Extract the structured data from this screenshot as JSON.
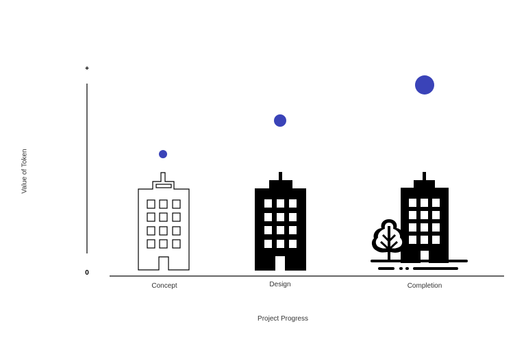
{
  "diagram": {
    "y_axis_label": "Value of Token",
    "y_tick_top": "+",
    "y_tick_bottom": "0",
    "x_axis_label": "Project Progress",
    "stages": [
      {
        "label": "Concept",
        "value_marker_size": "small",
        "building_style": "outline"
      },
      {
        "label": "Design",
        "value_marker_size": "medium",
        "building_style": "solid"
      },
      {
        "label": "Completion",
        "value_marker_size": "large",
        "building_style": "solid-with-tree"
      }
    ],
    "colors": {
      "value_marker": "#3a43b8",
      "building": "#000000",
      "axis": "#333333"
    }
  }
}
